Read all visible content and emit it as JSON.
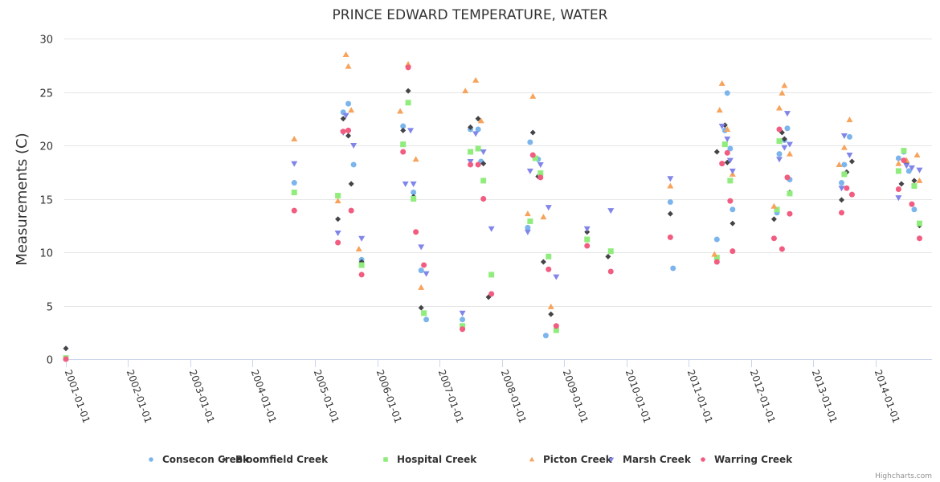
{
  "chart_data": {
    "type": "scatter",
    "title": "PRINCE EDWARD TEMPERATURE, WATER",
    "xlabel": "",
    "ylabel": "Measurements (C)",
    "ylim": [
      0,
      30
    ],
    "yticks": [
      "0",
      "5",
      "10",
      "15",
      "20",
      "25",
      "30"
    ],
    "xlim": [
      "2001-01-01",
      "2014-10-15"
    ],
    "xticks": [
      "2001-01-01",
      "2002-01-01",
      "2003-01-01",
      "2004-01-01",
      "2005-01-01",
      "2006-01-01",
      "2007-01-01",
      "2008-01-01",
      "2009-01-01",
      "2010-01-01",
      "2011-01-01",
      "2012-01-01",
      "2013-01-01",
      "2014-01-01"
    ],
    "grid": true,
    "legend": "bottom-center",
    "credits": "Highcharts.com",
    "series": [
      {
        "name": "Consecon Creek",
        "color": "#7cb5ec",
        "marker": "circle",
        "points": [
          [
            "2004-09-01",
            16.5
          ],
          [
            "2005-06-15",
            23.1
          ],
          [
            "2005-07-15",
            23.9
          ],
          [
            "2005-08-15",
            18.2
          ],
          [
            "2005-10-01",
            9.3
          ],
          [
            "2006-06-01",
            21.8
          ],
          [
            "2006-08-01",
            15.6
          ],
          [
            "2006-09-15",
            8.3
          ],
          [
            "2006-10-15",
            3.7
          ],
          [
            "2007-05-15",
            3.7
          ],
          [
            "2007-07-01",
            21.5
          ],
          [
            "2007-08-15",
            21.5
          ],
          [
            "2007-09-01",
            18.5
          ],
          [
            "2008-06-01",
            12.3
          ],
          [
            "2008-06-15",
            20.3
          ],
          [
            "2008-08-01",
            18.7
          ],
          [
            "2008-09-15",
            2.2
          ],
          [
            "2010-10-01",
            8.5
          ],
          [
            "2010-09-15",
            14.7
          ],
          [
            "2011-06-15",
            11.2
          ],
          [
            "2011-08-01",
            21.4
          ],
          [
            "2011-08-15",
            24.9
          ],
          [
            "2011-09-01",
            19.7
          ],
          [
            "2011-09-15",
            14.0
          ],
          [
            "2012-06-01",
            13.7
          ],
          [
            "2012-06-15",
            19.2
          ],
          [
            "2012-07-15",
            20.5
          ],
          [
            "2012-08-01",
            21.6
          ],
          [
            "2012-08-15",
            16.8
          ],
          [
            "2013-06-15",
            16.5
          ],
          [
            "2013-07-01",
            18.2
          ],
          [
            "2013-08-01",
            20.8
          ],
          [
            "2014-05-15",
            18.8
          ],
          [
            "2014-06-15",
            19.4
          ],
          [
            "2014-07-15",
            17.6
          ],
          [
            "2014-08-15",
            14.0
          ]
        ]
      },
      {
        "name": "Bloomfield Creek",
        "color": "#434348",
        "marker": "diamond",
        "points": [
          [
            "2001-01-01",
            1.0
          ],
          [
            "2005-05-15",
            13.1
          ],
          [
            "2005-06-15",
            22.5
          ],
          [
            "2005-07-15",
            20.9
          ],
          [
            "2005-08-01",
            16.4
          ],
          [
            "2005-10-01",
            9.1
          ],
          [
            "2006-06-01",
            21.4
          ],
          [
            "2006-07-01",
            25.1
          ],
          [
            "2006-08-01",
            15.2
          ],
          [
            "2006-09-15",
            4.8
          ],
          [
            "2007-07-01",
            21.7
          ],
          [
            "2007-08-15",
            22.5
          ],
          [
            "2007-09-15",
            18.3
          ],
          [
            "2007-10-15",
            5.8
          ],
          [
            "2008-07-01",
            21.2
          ],
          [
            "2008-08-01",
            17.1
          ],
          [
            "2008-09-01",
            9.1
          ],
          [
            "2008-10-15",
            4.2
          ],
          [
            "2009-05-15",
            11.9
          ],
          [
            "2009-09-15",
            9.6
          ],
          [
            "2010-09-15",
            13.6
          ],
          [
            "2011-06-15",
            19.4
          ],
          [
            "2011-08-01",
            21.9
          ],
          [
            "2011-08-15",
            18.4
          ],
          [
            "2011-09-15",
            12.7
          ],
          [
            "2012-05-15",
            13.1
          ],
          [
            "2012-07-01",
            21.2
          ],
          [
            "2012-07-15",
            20.6
          ],
          [
            "2012-08-15",
            15.6
          ],
          [
            "2013-06-15",
            14.9
          ],
          [
            "2013-07-15",
            17.5
          ],
          [
            "2013-08-15",
            18.5
          ],
          [
            "2014-06-01",
            16.4
          ],
          [
            "2014-07-01",
            18.3
          ],
          [
            "2014-08-15",
            16.7
          ],
          [
            "2014-09-15",
            12.5
          ]
        ]
      },
      {
        "name": "Hospital Creek",
        "color": "#90ed7d",
        "marker": "square",
        "points": [
          [
            "2001-01-01",
            0.1
          ],
          [
            "2004-09-01",
            15.6
          ],
          [
            "2005-05-15",
            15.3
          ],
          [
            "2005-10-01",
            8.8
          ],
          [
            "2006-06-01",
            20.1
          ],
          [
            "2006-07-01",
            24.0
          ],
          [
            "2006-08-01",
            15.0
          ],
          [
            "2006-10-01",
            4.3
          ],
          [
            "2007-05-15",
            3.1
          ],
          [
            "2007-07-01",
            19.4
          ],
          [
            "2007-08-15",
            19.7
          ],
          [
            "2007-09-15",
            16.7
          ],
          [
            "2007-11-01",
            7.9
          ],
          [
            "2008-06-15",
            12.9
          ],
          [
            "2008-07-15",
            18.8
          ],
          [
            "2008-08-15",
            17.4
          ],
          [
            "2008-10-01",
            9.6
          ],
          [
            "2008-11-15",
            2.7
          ],
          [
            "2009-05-15",
            11.2
          ],
          [
            "2009-10-01",
            10.1
          ],
          [
            "2011-06-15",
            9.5
          ],
          [
            "2011-08-01",
            20.1
          ],
          [
            "2011-09-01",
            16.7
          ],
          [
            "2012-06-01",
            14.0
          ],
          [
            "2012-06-15",
            20.4
          ],
          [
            "2012-08-15",
            15.5
          ],
          [
            "2013-07-01",
            17.3
          ],
          [
            "2014-05-15",
            17.6
          ],
          [
            "2014-06-15",
            19.5
          ],
          [
            "2014-08-15",
            16.2
          ],
          [
            "2014-09-15",
            12.7
          ]
        ]
      },
      {
        "name": "Picton Creek",
        "color": "#f7a35c",
        "marker": "triangle",
        "points": [
          [
            "2004-09-01",
            20.6
          ],
          [
            "2005-05-15",
            14.8
          ],
          [
            "2005-07-01",
            28.5
          ],
          [
            "2005-07-15",
            27.4
          ],
          [
            "2005-08-01",
            23.3
          ],
          [
            "2005-09-15",
            10.3
          ],
          [
            "2006-05-15",
            23.2
          ],
          [
            "2006-07-01",
            27.6
          ],
          [
            "2006-08-15",
            18.7
          ],
          [
            "2006-09-15",
            6.7
          ],
          [
            "2007-06-01",
            25.1
          ],
          [
            "2007-08-01",
            26.1
          ],
          [
            "2007-09-01",
            22.3
          ],
          [
            "2008-06-01",
            13.6
          ],
          [
            "2008-07-01",
            24.6
          ],
          [
            "2008-09-01",
            13.3
          ],
          [
            "2008-10-15",
            4.9
          ],
          [
            "2010-09-15",
            16.2
          ],
          [
            "2011-06-01",
            9.8
          ],
          [
            "2011-07-01",
            23.3
          ],
          [
            "2011-07-15",
            25.8
          ],
          [
            "2011-08-15",
            21.5
          ],
          [
            "2011-09-15",
            17.3
          ],
          [
            "2012-05-15",
            14.3
          ],
          [
            "2012-06-15",
            23.5
          ],
          [
            "2012-07-01",
            24.9
          ],
          [
            "2012-07-15",
            25.6
          ],
          [
            "2012-08-15",
            19.2
          ],
          [
            "2013-06-01",
            18.2
          ],
          [
            "2013-07-01",
            19.8
          ],
          [
            "2013-08-01",
            22.4
          ],
          [
            "2014-05-15",
            18.3
          ],
          [
            "2014-07-01",
            18.6
          ],
          [
            "2014-09-01",
            19.1
          ],
          [
            "2014-09-15",
            16.7
          ]
        ]
      },
      {
        "name": "Marsh Creek",
        "color": "#8085e9",
        "marker": "triangle-down",
        "points": [
          [
            "2004-09-01",
            18.3
          ],
          [
            "2005-05-15",
            11.8
          ],
          [
            "2005-06-15",
            21.2
          ],
          [
            "2005-07-01",
            22.8
          ],
          [
            "2005-08-15",
            20.0
          ],
          [
            "2005-10-01",
            11.3
          ],
          [
            "2006-06-15",
            16.4
          ],
          [
            "2006-07-15",
            21.4
          ],
          [
            "2006-08-01",
            16.4
          ],
          [
            "2006-09-15",
            10.5
          ],
          [
            "2006-10-15",
            8.0
          ],
          [
            "2007-05-15",
            4.3
          ],
          [
            "2007-07-01",
            18.5
          ],
          [
            "2007-08-01",
            21.1
          ],
          [
            "2007-09-15",
            19.4
          ],
          [
            "2007-11-01",
            12.2
          ],
          [
            "2008-06-01",
            11.9
          ],
          [
            "2008-06-15",
            17.6
          ],
          [
            "2008-08-15",
            18.2
          ],
          [
            "2008-10-01",
            14.2
          ],
          [
            "2008-11-15",
            7.7
          ],
          [
            "2009-05-15",
            12.2
          ],
          [
            "2009-10-01",
            13.9
          ],
          [
            "2010-09-15",
            16.9
          ],
          [
            "2011-07-15",
            21.8
          ],
          [
            "2011-08-15",
            20.6
          ],
          [
            "2011-09-01",
            18.6
          ],
          [
            "2011-09-15",
            17.6
          ],
          [
            "2012-06-15",
            18.7
          ],
          [
            "2012-07-15",
            19.8
          ],
          [
            "2012-08-01",
            23.0
          ],
          [
            "2012-08-15",
            20.1
          ],
          [
            "2013-06-15",
            16.0
          ],
          [
            "2013-07-01",
            20.9
          ],
          [
            "2013-08-01",
            19.1
          ],
          [
            "2014-05-15",
            15.1
          ],
          [
            "2014-07-01",
            18.1
          ],
          [
            "2014-08-01",
            17.9
          ],
          [
            "2014-09-15",
            17.7
          ]
        ]
      },
      {
        "name": "Warring Creek",
        "color": "#f15c80",
        "marker": "circle",
        "points": [
          [
            "2001-01-01",
            0.0
          ],
          [
            "2004-09-01",
            13.9
          ],
          [
            "2005-05-15",
            10.9
          ],
          [
            "2005-06-15",
            21.3
          ],
          [
            "2005-07-15",
            21.4
          ],
          [
            "2005-08-01",
            13.9
          ],
          [
            "2005-10-01",
            7.9
          ],
          [
            "2006-06-01",
            19.4
          ],
          [
            "2006-07-01",
            27.3
          ],
          [
            "2006-08-15",
            11.9
          ],
          [
            "2006-10-01",
            8.8
          ],
          [
            "2007-05-15",
            2.8
          ],
          [
            "2007-07-01",
            18.2
          ],
          [
            "2007-08-15",
            18.2
          ],
          [
            "2007-09-15",
            15.0
          ],
          [
            "2007-11-01",
            6.1
          ],
          [
            "2008-07-01",
            19.1
          ],
          [
            "2008-08-15",
            17.0
          ],
          [
            "2008-10-01",
            8.4
          ],
          [
            "2008-11-15",
            3.1
          ],
          [
            "2009-05-15",
            10.6
          ],
          [
            "2009-10-01",
            8.2
          ],
          [
            "2010-09-15",
            11.4
          ],
          [
            "2011-06-15",
            9.1
          ],
          [
            "2011-07-15",
            18.3
          ],
          [
            "2011-08-15",
            19.3
          ],
          [
            "2011-09-01",
            14.8
          ],
          [
            "2011-09-15",
            10.1
          ],
          [
            "2012-05-15",
            11.3
          ],
          [
            "2012-06-15",
            21.5
          ],
          [
            "2012-07-01",
            10.3
          ],
          [
            "2012-08-01",
            17.0
          ],
          [
            "2012-08-15",
            13.6
          ],
          [
            "2013-06-15",
            13.7
          ],
          [
            "2013-07-15",
            16.0
          ],
          [
            "2013-08-15",
            15.4
          ],
          [
            "2014-05-15",
            15.9
          ],
          [
            "2014-06-15",
            18.6
          ],
          [
            "2014-08-01",
            14.5
          ],
          [
            "2014-09-15",
            11.3
          ]
        ]
      }
    ]
  }
}
